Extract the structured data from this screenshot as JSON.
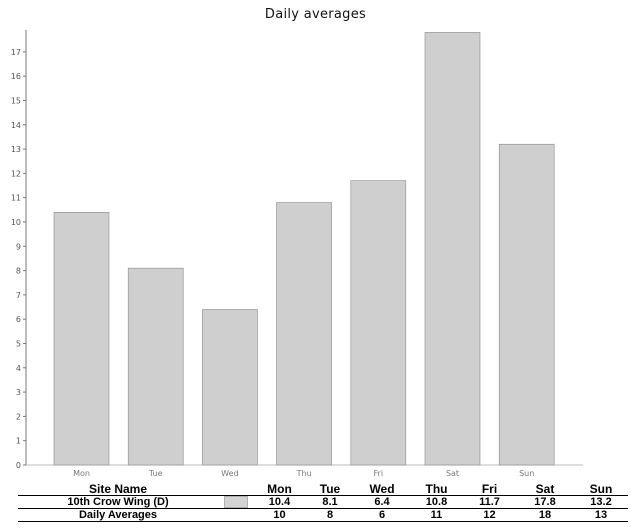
{
  "chart_data": {
    "type": "bar",
    "title": "Daily averages",
    "categories": [
      "Mon",
      "Tue",
      "Wed",
      "Thu",
      "Fri",
      "Sat",
      "Sun"
    ],
    "series": [
      {
        "name": "10th Crow Wing  (D)",
        "values": [
          10.4,
          8.1,
          6.4,
          10.8,
          11.7,
          17.8,
          13.2
        ]
      }
    ],
    "ylim": [
      0,
      17.9
    ],
    "yticks": [
      0,
      1,
      2,
      3,
      4,
      5,
      6,
      7,
      8,
      9,
      10,
      11,
      12,
      13,
      14,
      15,
      16,
      17
    ],
    "grid": false,
    "bar_color": "#cfcfcf"
  },
  "table": {
    "header_label": "Site Name",
    "days": [
      "Mon",
      "Tue",
      "Wed",
      "Thu",
      "Fri",
      "Sat",
      "Sun"
    ],
    "rows": [
      {
        "label": "10th Crow Wing  (D)",
        "values": [
          "10.4",
          "8.1",
          "6.4",
          "10.8",
          "11.7",
          "17.8",
          "13.2"
        ]
      },
      {
        "label": "Daily Averages",
        "values": [
          "10",
          "8",
          "6",
          "11",
          "12",
          "18",
          "13"
        ]
      }
    ]
  }
}
